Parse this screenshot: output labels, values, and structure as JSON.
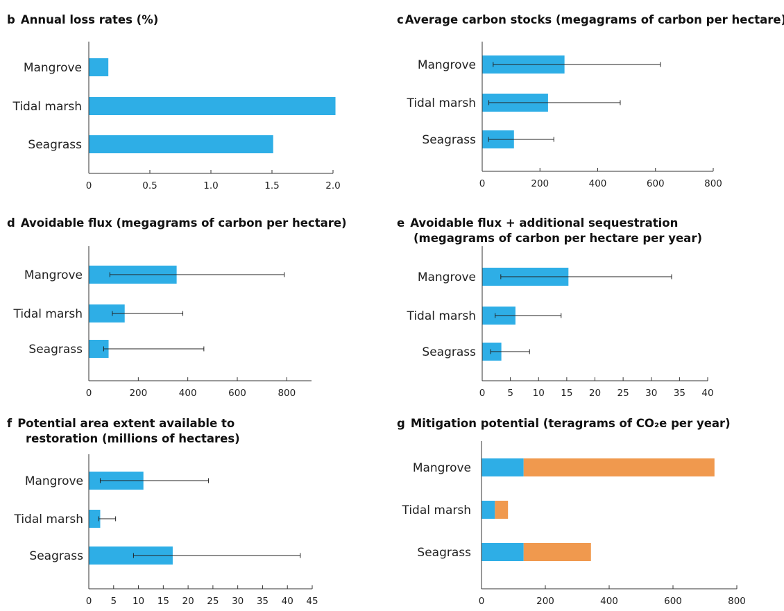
{
  "colors": {
    "bar": "#2eaee6",
    "stack": "#f0994e",
    "axis": "#333333",
    "error": "#222222"
  },
  "chart_data": [
    {
      "id": "b",
      "type": "bar",
      "orientation": "horizontal",
      "letter": "b",
      "title_lines": [
        "Annual loss rates (%)"
      ],
      "categories": [
        "Mangrove",
        "Tidal marsh",
        "Seagrass"
      ],
      "values": [
        0.16,
        2.02,
        1.51
      ],
      "errors": null,
      "xlim": [
        0,
        2.0
      ],
      "xticks": [
        0,
        0.5,
        1.0,
        1.5,
        2.0
      ],
      "xtick_labels": [
        "0",
        "0.5",
        "1.0",
        "1.5",
        "2.0"
      ],
      "xlabel": "",
      "ylabel": "",
      "grid": false
    },
    {
      "id": "c",
      "type": "bar",
      "orientation": "horizontal",
      "letter": "c",
      "title_lines": [
        "Average carbon stocks (megagrams of carbon per hectare)"
      ],
      "categories": [
        "Mangrove",
        "Tidal marsh",
        "Seagrass"
      ],
      "values": [
        285,
        228,
        110
      ],
      "errors": [
        [
          38,
          617
        ],
        [
          23,
          478
        ],
        [
          22,
          248
        ]
      ],
      "xlim": [
        0,
        800
      ],
      "xticks": [
        0,
        200,
        400,
        600,
        800
      ],
      "xtick_labels": [
        "0",
        "200",
        "400",
        "600",
        "800"
      ],
      "xlabel": "",
      "ylabel": "",
      "grid": false
    },
    {
      "id": "d",
      "type": "bar",
      "orientation": "horizontal",
      "letter": "d",
      "title_lines": [
        "Avoidable flux (megagrams of carbon per hectare)"
      ],
      "categories": [
        "Mangrove",
        "Tidal marsh",
        "Seagrass"
      ],
      "values": [
        355,
        145,
        80
      ],
      "errors": [
        [
          85,
          790
        ],
        [
          95,
          380
        ],
        [
          60,
          465
        ]
      ],
      "xlim": [
        0,
        900
      ],
      "xticks": [
        0,
        200,
        400,
        600,
        800
      ],
      "xtick_labels": [
        "0",
        "200",
        "400",
        "600",
        "800"
      ],
      "xlabel": "",
      "ylabel": "",
      "grid": false
    },
    {
      "id": "e",
      "type": "bar",
      "orientation": "horizontal",
      "letter": "e",
      "title_lines": [
        "Avoidable flux + additional sequestration",
        "(megagrams of carbon per hectare per year)"
      ],
      "categories": [
        "Mangrove",
        "Tidal marsh",
        "Seagrass"
      ],
      "values": [
        15.3,
        5.9,
        3.4
      ],
      "errors": [
        [
          3.3,
          33.6
        ],
        [
          2.3,
          14.0
        ],
        [
          1.5,
          8.4
        ]
      ],
      "xlim": [
        0,
        40
      ],
      "xticks": [
        0,
        5,
        10,
        15,
        20,
        25,
        30,
        35,
        40
      ],
      "xtick_labels": [
        "0",
        "5",
        "10",
        "15",
        "20",
        "25",
        "30",
        "35",
        "40"
      ],
      "xlabel": "",
      "ylabel": "",
      "grid": false
    },
    {
      "id": "f",
      "type": "bar",
      "orientation": "horizontal",
      "letter": "f",
      "title_lines": [
        "Potential area extent available to",
        "restoration (millions of hectares)"
      ],
      "categories": [
        "Mangrove",
        "Tidal marsh",
        "Seagrass"
      ],
      "values": [
        11.0,
        2.3,
        16.9
      ],
      "errors": [
        [
          2.3,
          24.1
        ],
        [
          2.0,
          5.4
        ],
        [
          9.0,
          42.6
        ]
      ],
      "xlim": [
        0,
        45
      ],
      "xticks": [
        0,
        5,
        10,
        15,
        20,
        25,
        30,
        35,
        40,
        45
      ],
      "xtick_labels": [
        "0",
        "5",
        "10",
        "15",
        "20",
        "25",
        "30",
        "35",
        "40",
        "45"
      ],
      "xlabel": "",
      "ylabel": "",
      "grid": false
    },
    {
      "id": "g",
      "type": "bar",
      "orientation": "horizontal",
      "stacked": true,
      "letter": "g",
      "title_lines": [
        "Mitigation potential (teragrams of CO₂e per year)"
      ],
      "categories": [
        "Mangrove",
        "Tidal marsh",
        "Seagrass"
      ],
      "series": [
        {
          "values": [
            132,
            42,
            132
          ]
        },
        {
          "values": [
            598,
            41,
            211
          ]
        }
      ],
      "errors": null,
      "xlim": [
        0,
        800
      ],
      "xticks": [
        0,
        200,
        400,
        600,
        800
      ],
      "xtick_labels": [
        "0",
        "200",
        "400",
        "600",
        "800"
      ],
      "xlabel": "",
      "ylabel": "",
      "grid": false
    }
  ]
}
